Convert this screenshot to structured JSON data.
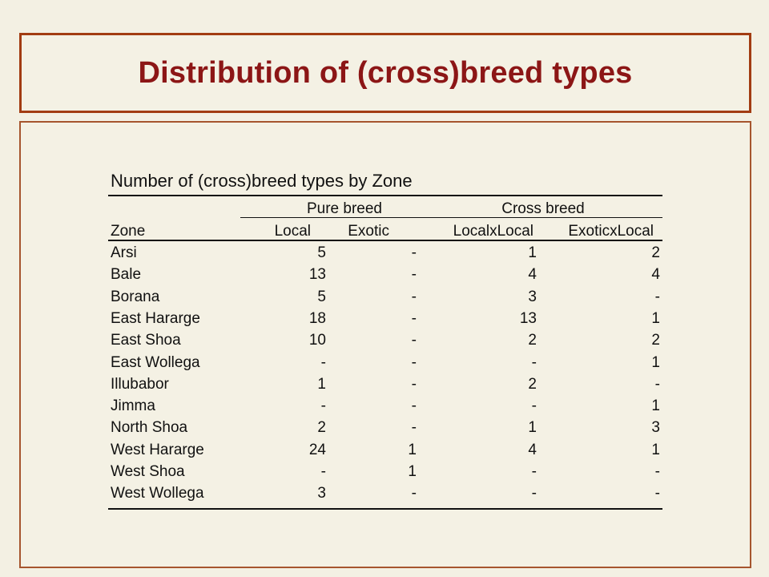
{
  "title": "Distribution of (cross)breed types",
  "table": {
    "caption": "Number of (cross)breed types by Zone",
    "group_headers": [
      "Pure breed",
      "Cross breed"
    ],
    "columns": [
      "Zone",
      "Local",
      "Exotic",
      "LocalxLocal",
      "ExoticxLocal"
    ],
    "rows": [
      [
        "Arsi",
        "5",
        "-",
        "1",
        "2"
      ],
      [
        "Bale",
        "13",
        "-",
        "4",
        "4"
      ],
      [
        "Borana",
        "5",
        "-",
        "3",
        "-"
      ],
      [
        "East Hararge",
        "18",
        "-",
        "13",
        "1"
      ],
      [
        "East Shoa",
        "10",
        "-",
        "2",
        "2"
      ],
      [
        "East Wollega",
        "-",
        "-",
        "-",
        "1"
      ],
      [
        "Illubabor",
        "1",
        "-",
        "2",
        "-"
      ],
      [
        "Jimma",
        "-",
        "-",
        "-",
        "1"
      ],
      [
        "North Shoa",
        "2",
        "-",
        "1",
        "3"
      ],
      [
        "West Hararge",
        "24",
        "1",
        "4",
        "1"
      ],
      [
        "West Shoa",
        "-",
        "1",
        "-",
        "-"
      ],
      [
        "West Wollega",
        "3",
        "-",
        "-",
        "-"
      ]
    ]
  }
}
